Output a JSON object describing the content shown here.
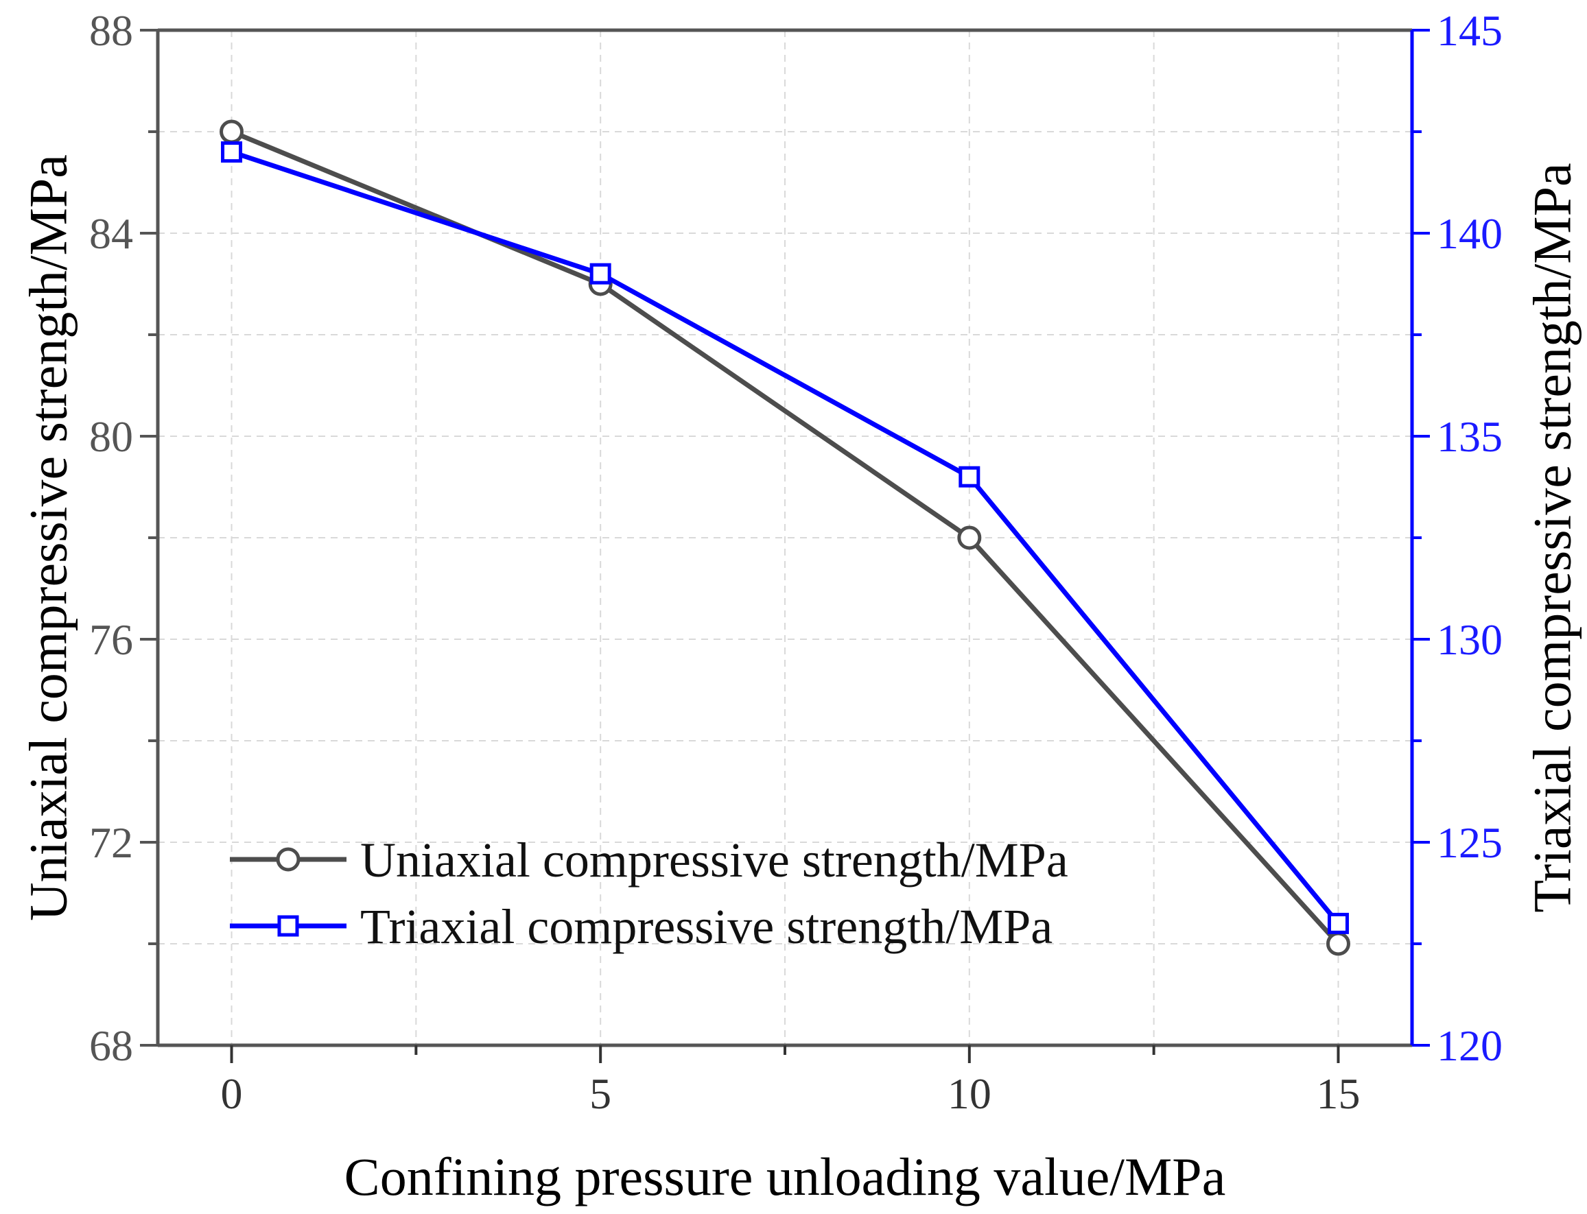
{
  "chart_data": {
    "type": "line",
    "title": "",
    "xlabel": "Confining pressure unloading value/MPa",
    "ylabel_left": "Uniaxial compressive strength/MPa",
    "ylabel_right": "Triaxial compressive strength/MPa",
    "x": [
      0,
      5,
      10,
      15
    ],
    "xlim": [
      -1,
      16
    ],
    "xticks": [
      0,
      5,
      10,
      15
    ],
    "xtick_labels": [
      "0",
      "5",
      "10",
      "15"
    ],
    "ylim_left": [
      68,
      88
    ],
    "yticks_left": [
      68,
      72,
      76,
      80,
      84,
      88
    ],
    "ytick_labels_left": [
      "68",
      "72",
      "76",
      "80",
      "84",
      "88"
    ],
    "ylim_right": [
      120,
      145
    ],
    "yticks_right": [
      120,
      125,
      130,
      135,
      140,
      145
    ],
    "ytick_labels_right": [
      "120",
      "125",
      "130",
      "135",
      "140",
      "145"
    ],
    "grid": true,
    "legend_position": "bottom-left",
    "series": [
      {
        "name": "Uniaxial compressive strength/MPa",
        "axis": "left",
        "marker": "circle",
        "color": "#4d4d4d",
        "values": [
          86,
          83,
          78,
          70
        ]
      },
      {
        "name": "Triaxial compressive strength/MPa",
        "axis": "right",
        "marker": "square",
        "color": "#0000ff",
        "values": [
          142,
          139,
          134,
          123
        ]
      }
    ]
  },
  "colors": {
    "left_axis": "#555555",
    "right_axis": "#0000ff",
    "grid": "#d9d9d9"
  }
}
